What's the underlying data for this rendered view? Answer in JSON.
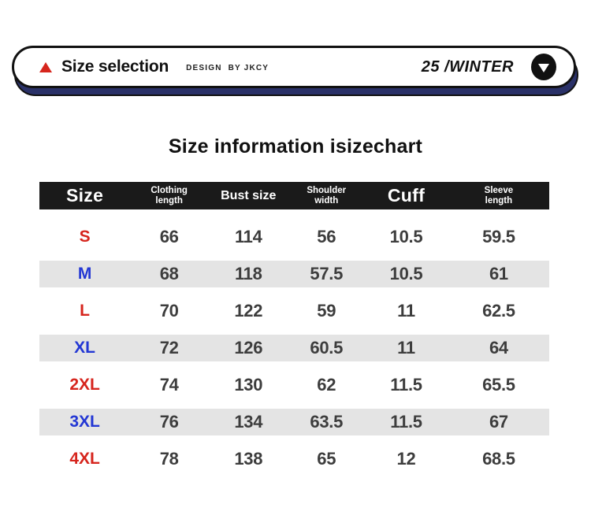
{
  "banner": {
    "title": "Size selection",
    "design_credit": "DESIGN  BY JKCY",
    "season": "25 /WINTER"
  },
  "page_title": "Size information isizechart",
  "chart_data": {
    "type": "table",
    "title": "Size information isizechart",
    "columns": [
      "Size",
      "Clothing length",
      "Bust size",
      "Shoulder width",
      "Cuff",
      "Sleeve length"
    ],
    "columns_display": [
      {
        "label": "Size"
      },
      {
        "label": "Clothing\nlength"
      },
      {
        "label": "Bust size"
      },
      {
        "label": "Shoulder\nwidth"
      },
      {
        "label": "Cuff"
      },
      {
        "label": "Sleeve\nlength"
      }
    ],
    "rows": [
      {
        "label": "S",
        "label_color": "red",
        "striped": false,
        "values": [
          66,
          114,
          56,
          10.5,
          59.5
        ]
      },
      {
        "label": "M",
        "label_color": "blue",
        "striped": true,
        "values": [
          68,
          118,
          57.5,
          10.5,
          61
        ]
      },
      {
        "label": "L",
        "label_color": "red",
        "striped": false,
        "values": [
          70,
          122,
          59,
          11,
          62.5
        ]
      },
      {
        "label": "XL",
        "label_color": "blue",
        "striped": true,
        "values": [
          72,
          126,
          60.5,
          11,
          64
        ]
      },
      {
        "label": "2XL",
        "label_color": "red",
        "striped": false,
        "values": [
          74,
          130,
          62,
          11.5,
          65.5
        ]
      },
      {
        "label": "3XL",
        "label_color": "blue",
        "striped": true,
        "values": [
          76,
          134,
          63.5,
          11.5,
          67
        ]
      },
      {
        "label": "4XL",
        "label_color": "red",
        "striped": false,
        "values": [
          78,
          138,
          65,
          12,
          68.5
        ]
      }
    ]
  },
  "colors": {
    "accent_red": "#d6251d",
    "label_blue": "#2337d4",
    "value_gray": "#3d3d3d",
    "stripe_gray": "#e4e4e4",
    "header_black": "#1a1a1a",
    "shadow_navy": "#2a3168"
  }
}
